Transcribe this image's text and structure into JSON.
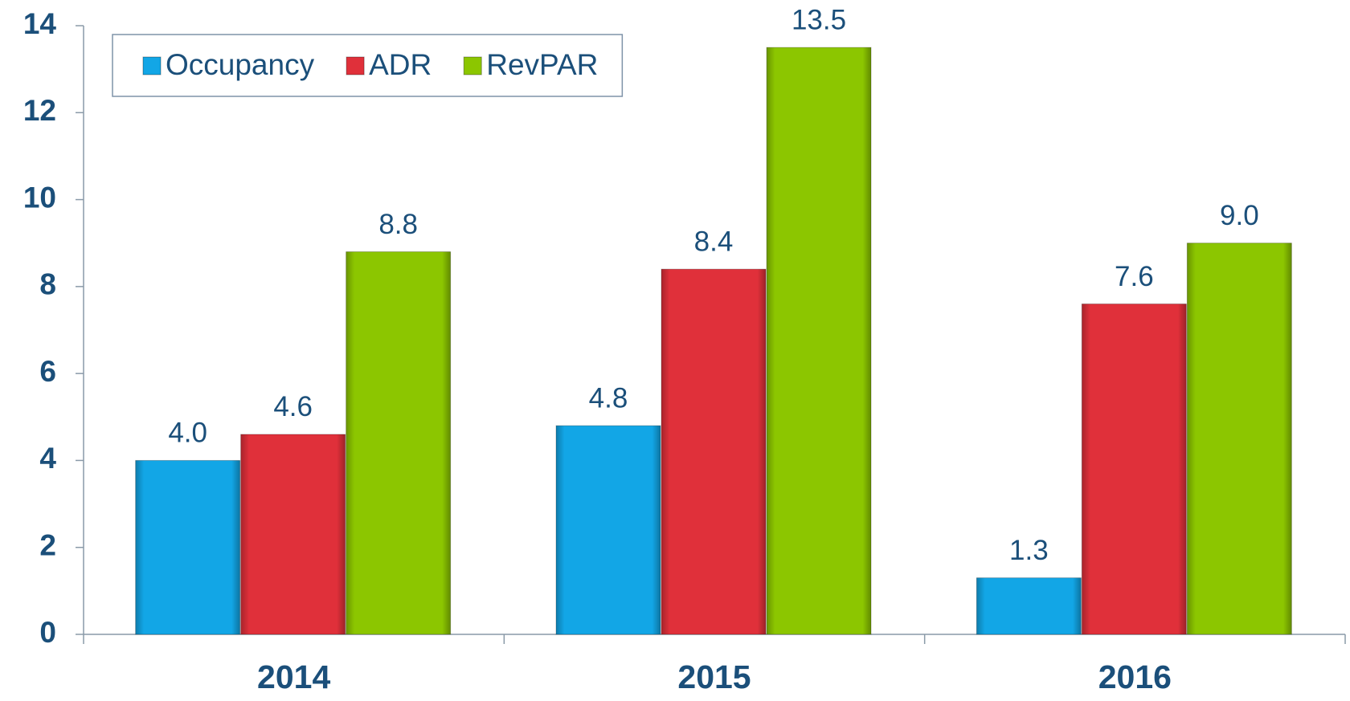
{
  "chart_data": {
    "type": "bar",
    "categories": [
      "2014",
      "2015",
      "2016"
    ],
    "series": [
      {
        "name": "Occupancy",
        "color": "#12a6e6",
        "values": [
          4.0,
          4.8,
          1.3
        ],
        "value_labels": [
          "4.0",
          "4.8",
          "1.3"
        ]
      },
      {
        "name": "ADR",
        "color": "#e0303a",
        "values": [
          4.6,
          8.4,
          7.6
        ],
        "value_labels": [
          "4.6",
          "8.4",
          "7.6"
        ]
      },
      {
        "name": "RevPAR",
        "color": "#8cc600",
        "values": [
          8.8,
          13.5,
          9.0
        ],
        "value_labels": [
          "8.8",
          "13.5",
          "9.0"
        ]
      }
    ],
    "ylim": [
      0,
      14
    ],
    "yticks": [
      0,
      2,
      4,
      6,
      8,
      10,
      12,
      14
    ],
    "legend": "upper left"
  }
}
